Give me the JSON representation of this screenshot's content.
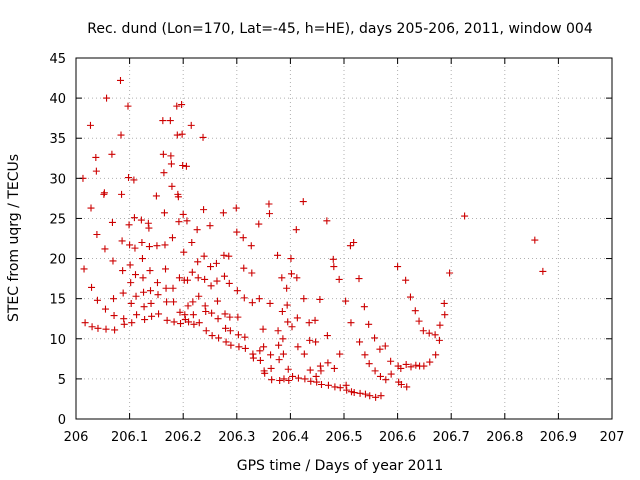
{
  "chart_data": {
    "type": "scatter",
    "title": "Rec. dund (Lon=170, Lat=-45, h=HE), days 205-206, 2011, window 004",
    "xlabel": "GPS time / Days of year 2011",
    "ylabel": "STEC from uqrg / TECUs",
    "xlim": [
      206,
      207
    ],
    "ylim": [
      0,
      45
    ],
    "xticks": [
      206,
      206.1,
      206.2,
      206.3,
      206.4,
      206.5,
      206.6,
      206.7,
      206.8,
      206.9,
      207
    ],
    "xtick_labels": [
      "206",
      "206.1",
      "206.2",
      "206.3",
      "206.4",
      "206.5",
      "206.6",
      "206.7",
      "206.8",
      "206.9",
      "207"
    ],
    "yticks": [
      0,
      5,
      10,
      15,
      20,
      25,
      30,
      35,
      40,
      45
    ],
    "ytick_labels": [
      "0",
      "5",
      "10",
      "15",
      "20",
      "25",
      "30",
      "35",
      "40",
      "45"
    ],
    "grid": true,
    "marker": "+",
    "color": "#cc0000",
    "series": [
      {
        "name": "STEC",
        "points": [
          [
            206.013,
            30.0
          ],
          [
            206.015,
            18.7
          ],
          [
            206.017,
            12.0
          ],
          [
            206.027,
            36.6
          ],
          [
            206.028,
            26.3
          ],
          [
            206.029,
            16.4
          ],
          [
            206.03,
            11.5
          ],
          [
            206.037,
            32.6
          ],
          [
            206.038,
            30.9
          ],
          [
            206.039,
            23.0
          ],
          [
            206.04,
            14.8
          ],
          [
            206.041,
            11.3
          ],
          [
            206.052,
            28.0
          ],
          [
            206.053,
            28.2
          ],
          [
            206.054,
            21.2
          ],
          [
            206.055,
            13.7
          ],
          [
            206.056,
            11.2
          ],
          [
            206.057,
            40.0
          ],
          [
            206.067,
            33.0
          ],
          [
            206.068,
            24.5
          ],
          [
            206.069,
            19.7
          ],
          [
            206.07,
            15.0
          ],
          [
            206.071,
            12.9
          ],
          [
            206.072,
            11.1
          ],
          [
            206.083,
            42.2
          ],
          [
            206.084,
            35.4
          ],
          [
            206.085,
            28.0
          ],
          [
            206.086,
            22.2
          ],
          [
            206.087,
            18.5
          ],
          [
            206.088,
            15.7
          ],
          [
            206.089,
            12.5
          ],
          [
            206.09,
            11.8
          ],
          [
            206.097,
            39.0
          ],
          [
            206.098,
            30.1
          ],
          [
            206.099,
            24.2
          ],
          [
            206.1,
            21.7
          ],
          [
            206.101,
            19.2
          ],
          [
            206.102,
            17.0
          ],
          [
            206.103,
            14.4
          ],
          [
            206.104,
            12.0
          ],
          [
            206.108,
            29.8
          ],
          [
            206.109,
            25.1
          ],
          [
            206.11,
            21.3
          ],
          [
            206.111,
            18.0
          ],
          [
            206.112,
            15.3
          ],
          [
            206.113,
            13.0
          ],
          [
            206.122,
            24.8
          ],
          [
            206.123,
            22.0
          ],
          [
            206.124,
            20.0
          ],
          [
            206.125,
            17.6
          ],
          [
            206.126,
            15.8
          ],
          [
            206.127,
            14.0
          ],
          [
            206.128,
            12.4
          ],
          [
            206.135,
            24.4
          ],
          [
            206.136,
            23.8
          ],
          [
            206.137,
            21.5
          ],
          [
            206.138,
            18.5
          ],
          [
            206.139,
            16.0
          ],
          [
            206.14,
            14.4
          ],
          [
            206.141,
            12.8
          ],
          [
            206.15,
            27.8
          ],
          [
            206.151,
            21.6
          ],
          [
            206.152,
            17.0
          ],
          [
            206.153,
            15.5
          ],
          [
            206.154,
            13.1
          ],
          [
            206.162,
            37.2
          ],
          [
            206.163,
            33.0
          ],
          [
            206.164,
            30.7
          ],
          [
            206.165,
            25.7
          ],
          [
            206.166,
            21.7
          ],
          [
            206.167,
            18.7
          ],
          [
            206.168,
            16.3
          ],
          [
            206.169,
            14.6
          ],
          [
            206.17,
            12.3
          ],
          [
            206.176,
            37.2
          ],
          [
            206.177,
            32.8
          ],
          [
            206.178,
            31.8
          ],
          [
            206.179,
            29.0
          ],
          [
            206.18,
            22.6
          ],
          [
            206.181,
            16.3
          ],
          [
            206.182,
            14.6
          ],
          [
            206.183,
            12.1
          ],
          [
            206.188,
            39.0
          ],
          [
            206.189,
            35.4
          ],
          [
            206.19,
            28.0
          ],
          [
            206.191,
            27.7
          ],
          [
            206.192,
            24.6
          ],
          [
            206.193,
            17.6
          ],
          [
            206.194,
            13.3
          ],
          [
            206.195,
            11.9
          ],
          [
            206.197,
            39.2
          ],
          [
            206.198,
            35.5
          ],
          [
            206.199,
            31.6
          ],
          [
            206.2,
            25.5
          ],
          [
            206.201,
            20.8
          ],
          [
            206.202,
            17.3
          ],
          [
            206.203,
            13.0
          ],
          [
            206.204,
            12.4
          ],
          [
            206.206,
            31.5
          ],
          [
            206.207,
            24.7
          ],
          [
            206.208,
            17.3
          ],
          [
            206.209,
            14.1
          ],
          [
            206.21,
            12.1
          ],
          [
            206.215,
            36.6
          ],
          [
            206.216,
            22.0
          ],
          [
            206.217,
            18.3
          ],
          [
            206.218,
            14.6
          ],
          [
            206.219,
            13.0
          ],
          [
            206.22,
            11.8
          ],
          [
            206.226,
            23.6
          ],
          [
            206.227,
            19.6
          ],
          [
            206.228,
            17.6
          ],
          [
            206.229,
            15.3
          ],
          [
            206.23,
            12.0
          ],
          [
            206.237,
            35.1
          ],
          [
            206.238,
            26.1
          ],
          [
            206.239,
            20.3
          ],
          [
            206.24,
            17.4
          ],
          [
            206.241,
            14.1
          ],
          [
            206.242,
            13.4
          ],
          [
            206.243,
            11.0
          ],
          [
            206.25,
            24.1
          ],
          [
            206.251,
            19.0
          ],
          [
            206.252,
            16.6
          ],
          [
            206.253,
            13.2
          ],
          [
            206.254,
            10.4
          ],
          [
            206.262,
            19.4
          ],
          [
            206.263,
            17.2
          ],
          [
            206.264,
            14.7
          ],
          [
            206.265,
            12.5
          ],
          [
            206.266,
            10.1
          ],
          [
            206.275,
            25.7
          ],
          [
            206.276,
            20.4
          ],
          [
            206.277,
            17.8
          ],
          [
            206.278,
            13.1
          ],
          [
            206.279,
            11.3
          ],
          [
            206.28,
            9.6
          ],
          [
            206.285,
            20.3
          ],
          [
            206.286,
            16.9
          ],
          [
            206.287,
            12.7
          ],
          [
            206.288,
            11.0
          ],
          [
            206.289,
            9.2
          ],
          [
            206.299,
            26.3
          ],
          [
            206.3,
            23.3
          ],
          [
            206.301,
            16.0
          ],
          [
            206.302,
            12.7
          ],
          [
            206.303,
            10.5
          ],
          [
            206.304,
            9.0
          ],
          [
            206.312,
            22.6
          ],
          [
            206.313,
            18.8
          ],
          [
            206.314,
            15.1
          ],
          [
            206.315,
            10.2
          ],
          [
            206.316,
            8.8
          ],
          [
            206.327,
            21.6
          ],
          [
            206.328,
            18.2
          ],
          [
            206.329,
            14.5
          ],
          [
            206.33,
            8.1
          ],
          [
            206.331,
            7.6
          ],
          [
            206.341,
            24.3
          ],
          [
            206.342,
            15.0
          ],
          [
            206.343,
            8.5
          ],
          [
            206.344,
            7.3
          ],
          [
            206.349,
            11.2
          ],
          [
            206.35,
            9.0
          ],
          [
            206.351,
            6.0
          ],
          [
            206.352,
            5.7
          ],
          [
            206.36,
            26.8
          ],
          [
            206.361,
            25.6
          ],
          [
            206.362,
            14.4
          ],
          [
            206.363,
            8.0
          ],
          [
            206.364,
            6.3
          ],
          [
            206.365,
            4.9
          ],
          [
            206.376,
            20.4
          ],
          [
            206.377,
            11.0
          ],
          [
            206.378,
            9.2
          ],
          [
            206.379,
            7.4
          ],
          [
            206.38,
            4.8
          ],
          [
            206.384,
            17.6
          ],
          [
            206.385,
            13.4
          ],
          [
            206.386,
            10.0
          ],
          [
            206.387,
            8.1
          ],
          [
            206.388,
            5.0
          ],
          [
            206.393,
            16.3
          ],
          [
            206.394,
            14.2
          ],
          [
            206.395,
            12.1
          ],
          [
            206.396,
            6.2
          ],
          [
            206.397,
            4.8
          ],
          [
            206.401,
            20.0
          ],
          [
            206.402,
            18.1
          ],
          [
            206.403,
            11.5
          ],
          [
            206.404,
            5.3
          ],
          [
            206.411,
            23.6
          ],
          [
            206.412,
            17.6
          ],
          [
            206.413,
            12.6
          ],
          [
            206.414,
            9.0
          ],
          [
            206.415,
            5.1
          ],
          [
            206.424,
            27.1
          ],
          [
            206.425,
            15.0
          ],
          [
            206.426,
            8.1
          ],
          [
            206.427,
            5.0
          ],
          [
            206.435,
            12.0
          ],
          [
            206.436,
            9.8
          ],
          [
            206.437,
            6.1
          ],
          [
            206.438,
            4.7
          ],
          [
            206.446,
            12.3
          ],
          [
            206.447,
            9.6
          ],
          [
            206.448,
            5.3
          ],
          [
            206.449,
            4.6
          ],
          [
            206.455,
            14.9
          ],
          [
            206.456,
            6.6
          ],
          [
            206.457,
            6.0
          ],
          [
            206.458,
            4.3
          ],
          [
            206.468,
            24.7
          ],
          [
            206.469,
            10.4
          ],
          [
            206.47,
            7.0
          ],
          [
            206.471,
            4.2
          ],
          [
            206.48,
            19.9
          ],
          [
            206.481,
            19.0
          ],
          [
            206.482,
            6.3
          ],
          [
            206.483,
            4.0
          ],
          [
            206.491,
            17.4
          ],
          [
            206.492,
            8.1
          ],
          [
            206.493,
            3.9
          ],
          [
            206.503,
            14.7
          ],
          [
            206.504,
            4.2
          ],
          [
            206.505,
            3.6
          ],
          [
            206.512,
            21.6
          ],
          [
            206.513,
            12.0
          ],
          [
            206.514,
            3.4
          ],
          [
            206.518,
            22.0
          ],
          [
            206.519,
            3.3
          ],
          [
            206.528,
            17.5
          ],
          [
            206.529,
            9.6
          ],
          [
            206.53,
            3.2
          ],
          [
            206.538,
            14.0
          ],
          [
            206.539,
            8.0
          ],
          [
            206.54,
            3.1
          ],
          [
            206.546,
            11.8
          ],
          [
            206.547,
            6.9
          ],
          [
            206.548,
            2.9
          ],
          [
            206.557,
            10.1
          ],
          [
            206.558,
            6.0
          ],
          [
            206.559,
            2.7
          ],
          [
            206.567,
            8.7
          ],
          [
            206.568,
            5.3
          ],
          [
            206.569,
            2.9
          ],
          [
            206.577,
            9.1
          ],
          [
            206.578,
            4.9
          ],
          [
            206.587,
            7.2
          ],
          [
            206.588,
            5.6
          ],
          [
            206.6,
            19.0
          ],
          [
            206.601,
            6.6
          ],
          [
            206.602,
            4.6
          ],
          [
            206.606,
            6.3
          ],
          [
            206.607,
            4.3
          ],
          [
            206.615,
            17.3
          ],
          [
            206.616,
            6.8
          ],
          [
            206.617,
            4.0
          ],
          [
            206.624,
            15.2
          ],
          [
            206.625,
            6.5
          ],
          [
            206.633,
            13.5
          ],
          [
            206.634,
            6.7
          ],
          [
            206.64,
            12.2
          ],
          [
            206.641,
            6.6
          ],
          [
            206.648,
            11.0
          ],
          [
            206.649,
            6.6
          ],
          [
            206.659,
            10.7
          ],
          [
            206.66,
            7.1
          ],
          [
            206.67,
            10.5
          ],
          [
            206.671,
            8.0
          ],
          [
            206.678,
            9.8
          ],
          [
            206.679,
            11.7
          ],
          [
            206.687,
            14.4
          ],
          [
            206.688,
            13.0
          ],
          [
            206.697,
            18.2
          ],
          [
            206.725,
            25.3
          ],
          [
            206.856,
            22.3
          ],
          [
            206.871,
            18.4
          ]
        ]
      }
    ]
  }
}
